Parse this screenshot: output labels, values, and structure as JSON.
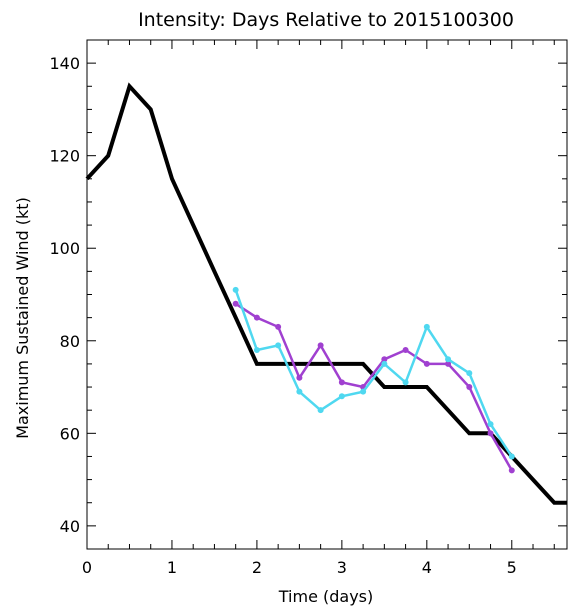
{
  "chart_data": {
    "type": "line",
    "title": "Intensity: Days Relative to 2015100300",
    "xlabel": "Time (days)",
    "ylabel": "Maximum Sustained Wind (kt)",
    "xlim": [
      0,
      5.65
    ],
    "ylim": [
      35,
      145
    ],
    "x_ticks": [
      0,
      1,
      2,
      3,
      4,
      5
    ],
    "y_ticks": [
      40,
      60,
      80,
      100,
      120,
      140
    ],
    "grid": false,
    "series": [
      {
        "color": "#000000",
        "markers": false,
        "x": [
          0,
          0.25,
          0.5,
          0.75,
          1.0,
          1.25,
          1.5,
          1.75,
          2.0,
          2.25,
          2.5,
          2.75,
          3.0,
          3.25,
          3.5,
          3.75,
          4.0,
          4.25,
          4.5,
          4.75,
          5.0,
          5.25,
          5.5,
          5.65
        ],
        "y": [
          115,
          120,
          135,
          130,
          115,
          105,
          95,
          85,
          75,
          75,
          75,
          75,
          75,
          75,
          70,
          70,
          70,
          65,
          60,
          60,
          55,
          50,
          45,
          45
        ]
      },
      {
        "color": "#a040d0",
        "markers": true,
        "x": [
          1.75,
          2.0,
          2.25,
          2.5,
          2.75,
          3.0,
          3.25,
          3.5,
          3.75,
          4.0,
          4.25,
          4.5,
          4.75,
          5.0
        ],
        "y": [
          88,
          85,
          83,
          72,
          79,
          71,
          70,
          76,
          78,
          75,
          75,
          70,
          60,
          52
        ]
      },
      {
        "color": "#4fd8f0",
        "markers": true,
        "x": [
          1.75,
          2.0,
          2.25,
          2.5,
          2.75,
          3.0,
          3.25,
          3.5,
          3.75,
          4.0,
          4.25,
          4.5,
          4.75,
          5.0
        ],
        "y": [
          91,
          78,
          79,
          69,
          65,
          68,
          69,
          75,
          71,
          83,
          76,
          73,
          62,
          55
        ]
      }
    ]
  }
}
